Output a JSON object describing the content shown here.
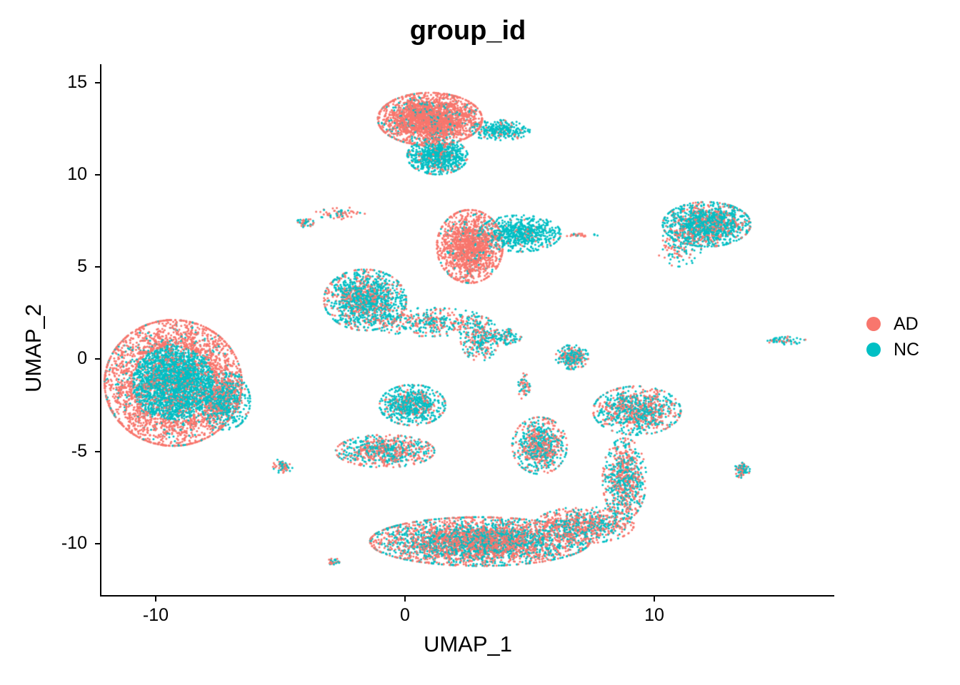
{
  "chart_data": {
    "type": "scatter",
    "title": "group_id",
    "xlabel": "UMAP_1",
    "ylabel": "UMAP_2",
    "xlim": [
      -12.5,
      17.3
    ],
    "ylim": [
      -12.8,
      16.0
    ],
    "x_ticks": [
      -10,
      0,
      10
    ],
    "y_ticks": [
      15,
      10,
      5,
      0,
      -5,
      -10
    ],
    "x_tick_labels": [
      "-10",
      "0",
      "10"
    ],
    "y_tick_labels": [
      "15",
      "10",
      "5",
      "0",
      "-5",
      "-10"
    ],
    "grid": false,
    "legend": {
      "position": "right",
      "entries": [
        {
          "label": "AD",
          "color": "#F8766D"
        },
        {
          "label": "NC",
          "color": "#00BFC4"
        }
      ]
    },
    "series": [
      {
        "name": "AD",
        "color": "#F8766D"
      },
      {
        "name": "NC",
        "color": "#00BFC4"
      }
    ],
    "clusters": [
      {
        "name": "left-large",
        "cx": -9.3,
        "cy": -1.3,
        "sx": 1.25,
        "sy": 1.55,
        "n": 5200,
        "nc_frac": 0.55,
        "nc_core": true
      },
      {
        "name": "left-bulge",
        "cx": -7.2,
        "cy": -2.3,
        "sx": 0.45,
        "sy": 0.7,
        "n": 600,
        "nc_frac": 0.9
      },
      {
        "name": "left-small",
        "cx": -4.9,
        "cy": -5.8,
        "sx": 0.18,
        "sy": 0.18,
        "n": 60,
        "nc_frac": 0.5
      },
      {
        "name": "top-main",
        "cx": 1.0,
        "cy": 13.0,
        "sx": 0.95,
        "sy": 0.65,
        "n": 2400,
        "nc_frac": 0.12
      },
      {
        "name": "top-nc-lobe",
        "cx": 1.3,
        "cy": 11.0,
        "sx": 0.55,
        "sy": 0.45,
        "n": 800,
        "nc_frac": 0.85
      },
      {
        "name": "top-tail",
        "cx": 3.8,
        "cy": 12.4,
        "sx": 0.55,
        "sy": 0.25,
        "n": 300,
        "nc_frac": 0.85
      },
      {
        "name": "upper-left-strand-a",
        "cx": -4.0,
        "cy": 7.4,
        "sx": 0.15,
        "sy": 0.12,
        "n": 45,
        "nc_frac": 0.5
      },
      {
        "name": "upper-left-strand-b",
        "cx": -2.6,
        "cy": 7.9,
        "sx": 0.45,
        "sy": 0.15,
        "n": 60,
        "nc_frac": 0.3
      },
      {
        "name": "mid-top-ad",
        "cx": 2.6,
        "cy": 6.1,
        "sx": 0.6,
        "sy": 0.9,
        "n": 1500,
        "nc_frac": 0.08
      },
      {
        "name": "mid-top-nc",
        "cx": 4.6,
        "cy": 6.8,
        "sx": 0.75,
        "sy": 0.45,
        "n": 700,
        "nc_frac": 0.92
      },
      {
        "name": "mid-top-strand",
        "cx": 7.1,
        "cy": 6.7,
        "sx": 0.3,
        "sy": 0.04,
        "n": 25,
        "nc_frac": 0.4
      },
      {
        "name": "right-top",
        "cx": 12.1,
        "cy": 7.3,
        "sx": 0.8,
        "sy": 0.55,
        "n": 1400,
        "nc_frac": 0.7
      },
      {
        "name": "right-top-tail",
        "cx": 11.0,
        "cy": 6.0,
        "sx": 0.4,
        "sy": 0.45,
        "n": 120,
        "nc_frac": 0.5
      },
      {
        "name": "center-left",
        "cx": -1.6,
        "cy": 3.2,
        "sx": 0.75,
        "sy": 0.75,
        "n": 1300,
        "nc_frac": 0.65
      },
      {
        "name": "center-tail",
        "cx": 1.0,
        "cy": 2.0,
        "sx": 1.1,
        "sy": 0.35,
        "n": 400,
        "nc_frac": 0.55
      },
      {
        "name": "center-tail-end",
        "cx": 3.0,
        "cy": 1.1,
        "sx": 0.35,
        "sy": 0.55,
        "n": 250,
        "nc_frac": 0.6
      },
      {
        "name": "center-right-small",
        "cx": 4.0,
        "cy": 1.2,
        "sx": 0.3,
        "sy": 0.2,
        "n": 120,
        "nc_frac": 0.75
      },
      {
        "name": "mid-ring",
        "cx": 6.7,
        "cy": 0.1,
        "sx": 0.3,
        "sy": 0.3,
        "n": 250,
        "nc_frac": 0.7
      },
      {
        "name": "mid-crescent",
        "cx": 4.8,
        "cy": -1.5,
        "sx": 0.12,
        "sy": 0.35,
        "n": 60,
        "nc_frac": 0.5
      },
      {
        "name": "crescent-top",
        "cx": 0.3,
        "cy": -2.5,
        "sx": 0.6,
        "sy": 0.5,
        "n": 700,
        "nc_frac": 0.75
      },
      {
        "name": "crescent-bottom",
        "cx": -0.8,
        "cy": -5.0,
        "sx": 0.9,
        "sy": 0.4,
        "n": 700,
        "nc_frac": 0.45
      },
      {
        "name": "lower-mid-left",
        "cx": 5.4,
        "cy": -4.7,
        "sx": 0.5,
        "sy": 0.7,
        "n": 700,
        "nc_frac": 0.5
      },
      {
        "name": "lower-mid-right",
        "cx": 9.3,
        "cy": -2.8,
        "sx": 0.8,
        "sy": 0.6,
        "n": 900,
        "nc_frac": 0.55
      },
      {
        "name": "lower-mid-vertical",
        "cx": 8.8,
        "cy": -6.5,
        "sx": 0.4,
        "sy": 1.0,
        "n": 700,
        "nc_frac": 0.5
      },
      {
        "name": "bottom-large",
        "cx": 3.0,
        "cy": -9.9,
        "sx": 2.0,
        "sy": 0.6,
        "n": 3500,
        "nc_frac": 0.45
      },
      {
        "name": "bottom-right",
        "cx": 7.2,
        "cy": -9.0,
        "sx": 0.9,
        "sy": 0.45,
        "n": 700,
        "nc_frac": 0.35
      },
      {
        "name": "right-small",
        "cx": 13.5,
        "cy": -6.0,
        "sx": 0.15,
        "sy": 0.2,
        "n": 80,
        "nc_frac": 0.6
      },
      {
        "name": "far-right-strand",
        "cx": 15.2,
        "cy": 1.0,
        "sx": 0.4,
        "sy": 0.1,
        "n": 60,
        "nc_frac": 0.7
      },
      {
        "name": "bottom-left-small",
        "cx": -2.9,
        "cy": -11.0,
        "sx": 0.12,
        "sy": 0.1,
        "n": 30,
        "nc_frac": 0.5
      }
    ]
  }
}
